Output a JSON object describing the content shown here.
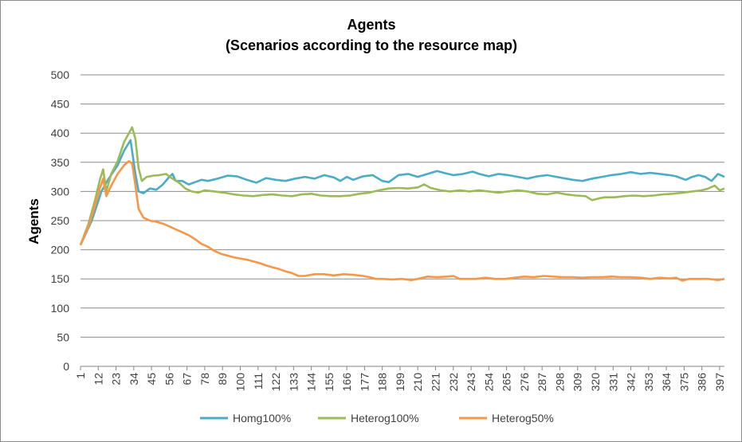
{
  "chart_data": {
    "type": "line",
    "title": "Agents",
    "subtitle": "(Scenarios according to the resource map)",
    "xlabel": "",
    "ylabel": "Agents",
    "ylim": [
      0,
      500
    ],
    "yticks": [
      "0",
      "50",
      "100",
      "150",
      "200",
      "250",
      "300",
      "350",
      "400",
      "450",
      "500"
    ],
    "xlim": [
      1,
      400
    ],
    "xticks": [
      "1",
      "12",
      "23",
      "34",
      "45",
      "56",
      "67",
      "78",
      "89",
      "100",
      "111",
      "122",
      "133",
      "144",
      "155",
      "166",
      "177",
      "188",
      "199",
      "210",
      "221",
      "232",
      "243",
      "254",
      "265",
      "276",
      "287",
      "298",
      "309",
      "320",
      "331",
      "342",
      "353",
      "364",
      "375",
      "386",
      "397"
    ],
    "grid": true,
    "legend_position": "bottom",
    "series": [
      {
        "name": "Homg100%",
        "color": "#4bacc6",
        "points": [
          [
            1,
            208
          ],
          [
            8,
            250
          ],
          [
            14,
            300
          ],
          [
            18,
            320
          ],
          [
            24,
            345
          ],
          [
            28,
            370
          ],
          [
            32,
            388
          ],
          [
            35,
            330
          ],
          [
            37,
            300
          ],
          [
            40,
            297
          ],
          [
            44,
            305
          ],
          [
            48,
            303
          ],
          [
            52,
            312
          ],
          [
            56,
            325
          ],
          [
            58,
            330
          ],
          [
            60,
            318
          ],
          [
            64,
            318
          ],
          [
            68,
            312
          ],
          [
            72,
            316
          ],
          [
            76,
            320
          ],
          [
            80,
            318
          ],
          [
            86,
            322
          ],
          [
            92,
            327
          ],
          [
            98,
            326
          ],
          [
            104,
            320
          ],
          [
            110,
            315
          ],
          [
            116,
            323
          ],
          [
            122,
            320
          ],
          [
            128,
            318
          ],
          [
            134,
            322
          ],
          [
            140,
            325
          ],
          [
            146,
            322
          ],
          [
            152,
            328
          ],
          [
            158,
            324
          ],
          [
            162,
            318
          ],
          [
            166,
            325
          ],
          [
            170,
            320
          ],
          [
            176,
            326
          ],
          [
            182,
            328
          ],
          [
            188,
            318
          ],
          [
            192,
            316
          ],
          [
            198,
            328
          ],
          [
            204,
            330
          ],
          [
            210,
            325
          ],
          [
            216,
            330
          ],
          [
            222,
            335
          ],
          [
            226,
            332
          ],
          [
            232,
            328
          ],
          [
            238,
            330
          ],
          [
            244,
            334
          ],
          [
            248,
            330
          ],
          [
            254,
            326
          ],
          [
            260,
            330
          ],
          [
            266,
            328
          ],
          [
            272,
            325
          ],
          [
            278,
            322
          ],
          [
            284,
            326
          ],
          [
            290,
            328
          ],
          [
            296,
            325
          ],
          [
            302,
            322
          ],
          [
            306,
            320
          ],
          [
            312,
            318
          ],
          [
            318,
            322
          ],
          [
            324,
            325
          ],
          [
            330,
            328
          ],
          [
            336,
            330
          ],
          [
            342,
            333
          ],
          [
            348,
            330
          ],
          [
            354,
            332
          ],
          [
            360,
            330
          ],
          [
            366,
            328
          ],
          [
            370,
            326
          ],
          [
            376,
            320
          ],
          [
            380,
            325
          ],
          [
            384,
            328
          ],
          [
            388,
            325
          ],
          [
            392,
            318
          ],
          [
            396,
            330
          ],
          [
            400,
            325
          ]
        ]
      },
      {
        "name": "Heterog100%",
        "color": "#9bbb59",
        "points": [
          [
            1,
            208
          ],
          [
            6,
            245
          ],
          [
            10,
            285
          ],
          [
            13,
            320
          ],
          [
            15,
            338
          ],
          [
            17,
            300
          ],
          [
            20,
            330
          ],
          [
            24,
            352
          ],
          [
            28,
            385
          ],
          [
            31,
            400
          ],
          [
            33,
            410
          ],
          [
            35,
            390
          ],
          [
            37,
            340
          ],
          [
            39,
            318
          ],
          [
            42,
            325
          ],
          [
            46,
            327
          ],
          [
            50,
            328
          ],
          [
            54,
            330
          ],
          [
            58,
            322
          ],
          [
            62,
            315
          ],
          [
            66,
            305
          ],
          [
            70,
            300
          ],
          [
            74,
            298
          ],
          [
            78,
            302
          ],
          [
            84,
            300
          ],
          [
            90,
            298
          ],
          [
            96,
            295
          ],
          [
            102,
            293
          ],
          [
            108,
            292
          ],
          [
            114,
            294
          ],
          [
            120,
            295
          ],
          [
            126,
            293
          ],
          [
            132,
            292
          ],
          [
            138,
            295
          ],
          [
            144,
            296
          ],
          [
            150,
            293
          ],
          [
            156,
            292
          ],
          [
            162,
            292
          ],
          [
            168,
            293
          ],
          [
            174,
            296
          ],
          [
            180,
            298
          ],
          [
            186,
            302
          ],
          [
            192,
            305
          ],
          [
            198,
            306
          ],
          [
            204,
            305
          ],
          [
            210,
            307
          ],
          [
            214,
            312
          ],
          [
            218,
            306
          ],
          [
            224,
            302
          ],
          [
            230,
            300
          ],
          [
            236,
            302
          ],
          [
            242,
            300
          ],
          [
            248,
            302
          ],
          [
            254,
            300
          ],
          [
            260,
            298
          ],
          [
            266,
            300
          ],
          [
            272,
            302
          ],
          [
            278,
            300
          ],
          [
            284,
            296
          ],
          [
            290,
            295
          ],
          [
            296,
            298
          ],
          [
            302,
            295
          ],
          [
            308,
            293
          ],
          [
            314,
            292
          ],
          [
            318,
            285
          ],
          [
            322,
            288
          ],
          [
            326,
            290
          ],
          [
            332,
            290
          ],
          [
            338,
            292
          ],
          [
            344,
            293
          ],
          [
            350,
            292
          ],
          [
            356,
            293
          ],
          [
            362,
            295
          ],
          [
            368,
            296
          ],
          [
            374,
            298
          ],
          [
            380,
            300
          ],
          [
            386,
            302
          ],
          [
            390,
            305
          ],
          [
            394,
            310
          ],
          [
            397,
            302
          ],
          [
            400,
            305
          ]
        ]
      },
      {
        "name": "Heterog50%",
        "color": "#f79646",
        "points": [
          [
            1,
            208
          ],
          [
            6,
            240
          ],
          [
            10,
            275
          ],
          [
            13,
            305
          ],
          [
            15,
            322
          ],
          [
            17,
            292
          ],
          [
            20,
            310
          ],
          [
            24,
            330
          ],
          [
            28,
            345
          ],
          [
            31,
            352
          ],
          [
            33,
            348
          ],
          [
            35,
            310
          ],
          [
            37,
            270
          ],
          [
            40,
            255
          ],
          [
            44,
            250
          ],
          [
            48,
            248
          ],
          [
            52,
            245
          ],
          [
            56,
            240
          ],
          [
            60,
            235
          ],
          [
            64,
            230
          ],
          [
            68,
            225
          ],
          [
            72,
            218
          ],
          [
            76,
            210
          ],
          [
            80,
            205
          ],
          [
            84,
            198
          ],
          [
            88,
            193
          ],
          [
            92,
            190
          ],
          [
            96,
            187
          ],
          [
            100,
            185
          ],
          [
            104,
            183
          ],
          [
            108,
            180
          ],
          [
            112,
            177
          ],
          [
            116,
            173
          ],
          [
            120,
            170
          ],
          [
            124,
            167
          ],
          [
            128,
            163
          ],
          [
            132,
            160
          ],
          [
            136,
            155
          ],
          [
            140,
            155
          ],
          [
            146,
            158
          ],
          [
            152,
            158
          ],
          [
            158,
            156
          ],
          [
            164,
            158
          ],
          [
            170,
            157
          ],
          [
            176,
            155
          ],
          [
            180,
            153
          ],
          [
            184,
            150
          ],
          [
            188,
            150
          ],
          [
            194,
            149
          ],
          [
            200,
            150
          ],
          [
            206,
            148
          ],
          [
            210,
            150
          ],
          [
            216,
            154
          ],
          [
            222,
            153
          ],
          [
            228,
            154
          ],
          [
            232,
            155
          ],
          [
            236,
            150
          ],
          [
            240,
            150
          ],
          [
            246,
            150
          ],
          [
            252,
            152
          ],
          [
            258,
            150
          ],
          [
            264,
            150
          ],
          [
            270,
            152
          ],
          [
            276,
            154
          ],
          [
            282,
            153
          ],
          [
            288,
            155
          ],
          [
            294,
            154
          ],
          [
            300,
            153
          ],
          [
            306,
            153
          ],
          [
            312,
            152
          ],
          [
            318,
            153
          ],
          [
            324,
            153
          ],
          [
            330,
            154
          ],
          [
            336,
            153
          ],
          [
            342,
            153
          ],
          [
            348,
            152
          ],
          [
            354,
            150
          ],
          [
            360,
            152
          ],
          [
            366,
            151
          ],
          [
            370,
            152
          ],
          [
            374,
            147
          ],
          [
            378,
            150
          ],
          [
            384,
            150
          ],
          [
            390,
            150
          ],
          [
            396,
            148
          ],
          [
            400,
            150
          ]
        ]
      }
    ]
  }
}
